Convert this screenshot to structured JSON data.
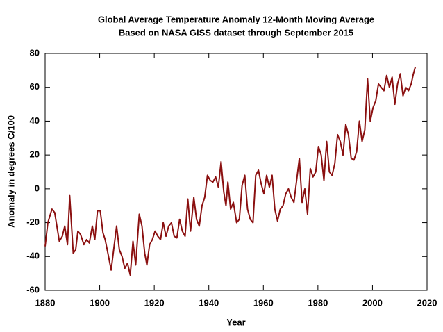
{
  "chart_data": {
    "type": "line",
    "title": "Global Average Temperature Anomaly 12-Month Moving Average",
    "subtitle": "Based on NASA GISS dataset through September 2015",
    "x_label": "Year",
    "y_label": "Anomaly in degrees C/100",
    "x": [
      1880.0,
      1881.0,
      1882.5,
      1883.5,
      1885.2,
      1886.3,
      1887.2,
      1888.2,
      1889.0,
      1890.3,
      1891.2,
      1892.0,
      1893.0,
      1894.2,
      1895.2,
      1896.2,
      1897.3,
      1898.2,
      1899.2,
      1900.2,
      1901.2,
      1902.0,
      1903.0,
      1904.2,
      1905.2,
      1906.2,
      1907.2,
      1908.2,
      1909.2,
      1910.2,
      1911.2,
      1912.2,
      1913.2,
      1914.5,
      1915.5,
      1916.5,
      1917.3,
      1918.3,
      1919.3,
      1920.3,
      1921.3,
      1922.3,
      1923.3,
      1924.3,
      1925.3,
      1926.3,
      1927.3,
      1928.3,
      1929.3,
      1930.3,
      1931.3,
      1932.3,
      1933.3,
      1934.5,
      1935.5,
      1936.5,
      1937.5,
      1938.5,
      1939.5,
      1940.5,
      1941.5,
      1942.5,
      1943.5,
      1944.5,
      1945.5,
      1946.3,
      1947.0,
      1948.0,
      1949.0,
      1950.2,
      1951.2,
      1952.2,
      1953.2,
      1954.2,
      1955.2,
      1956.2,
      1957.2,
      1958.2,
      1959.2,
      1960.2,
      1961.2,
      1962.2,
      1963.2,
      1964.2,
      1965.2,
      1966.2,
      1967.2,
      1968.2,
      1969.2,
      1970.2,
      1971.2,
      1972.2,
      1973.2,
      1974.2,
      1975.2,
      1976.2,
      1977.2,
      1978.2,
      1979.2,
      1980.2,
      1981.2,
      1982.2,
      1983.2,
      1984.2,
      1985.2,
      1986.2,
      1987.2,
      1988.2,
      1989.2,
      1990.2,
      1991.2,
      1992.2,
      1993.2,
      1994.2,
      1995.2,
      1996.2,
      1997.2,
      1998.2,
      1999.2,
      2000.2,
      2001.2,
      2002.2,
      2003.2,
      2004.2,
      2005.2,
      2006.2,
      2007.2,
      2008.2,
      2009.2,
      2010.2,
      2011.2,
      2012.2,
      2013.2,
      2014.2,
      2015.0,
      2015.7
    ],
    "series": [
      {
        "name": "12-Month Moving Average",
        "color": "#8b1010",
        "values": [
          -34,
          -20,
          -12,
          -14,
          -31,
          -28,
          -22,
          -33,
          -4,
          -38,
          -36,
          -25,
          -27,
          -33,
          -30,
          -32,
          -22,
          -30,
          -13,
          -13,
          -26,
          -30,
          -38,
          -48,
          -35,
          -22,
          -36,
          -40,
          -47,
          -44,
          -51,
          -31,
          -45,
          -15,
          -22,
          -38,
          -45,
          -33,
          -30,
          -25,
          -28,
          -30,
          -20,
          -28,
          -22,
          -20,
          -28,
          -29,
          -18,
          -25,
          -28,
          -6,
          -25,
          -5,
          -18,
          -22,
          -10,
          -5,
          8,
          5,
          4,
          7,
          1,
          16,
          -2,
          -10,
          4,
          -12,
          -8,
          -20,
          -18,
          2,
          8,
          -12,
          -18,
          -20,
          8,
          11,
          3,
          -3,
          8,
          1,
          8,
          -12,
          -19,
          -12,
          -10,
          -3,
          0,
          -5,
          -8,
          5,
          18,
          -8,
          0,
          -15,
          12,
          7,
          10,
          25,
          20,
          5,
          28,
          10,
          8,
          15,
          32,
          28,
          20,
          38,
          32,
          18,
          17,
          22,
          40,
          28,
          35,
          65,
          40,
          48,
          52,
          62,
          60,
          58,
          67,
          60,
          66,
          50,
          62,
          68,
          55,
          60,
          58,
          62,
          68,
          72
        ]
      }
    ],
    "xlim": [
      1880,
      2020
    ],
    "xticks": [
      1880,
      1900,
      1920,
      1940,
      1960,
      1980,
      2000,
      2020
    ],
    "ylim": [
      -60,
      80
    ],
    "yticks": [
      -60,
      -40,
      -20,
      0,
      20,
      40,
      60,
      80
    ],
    "grid": false
  }
}
